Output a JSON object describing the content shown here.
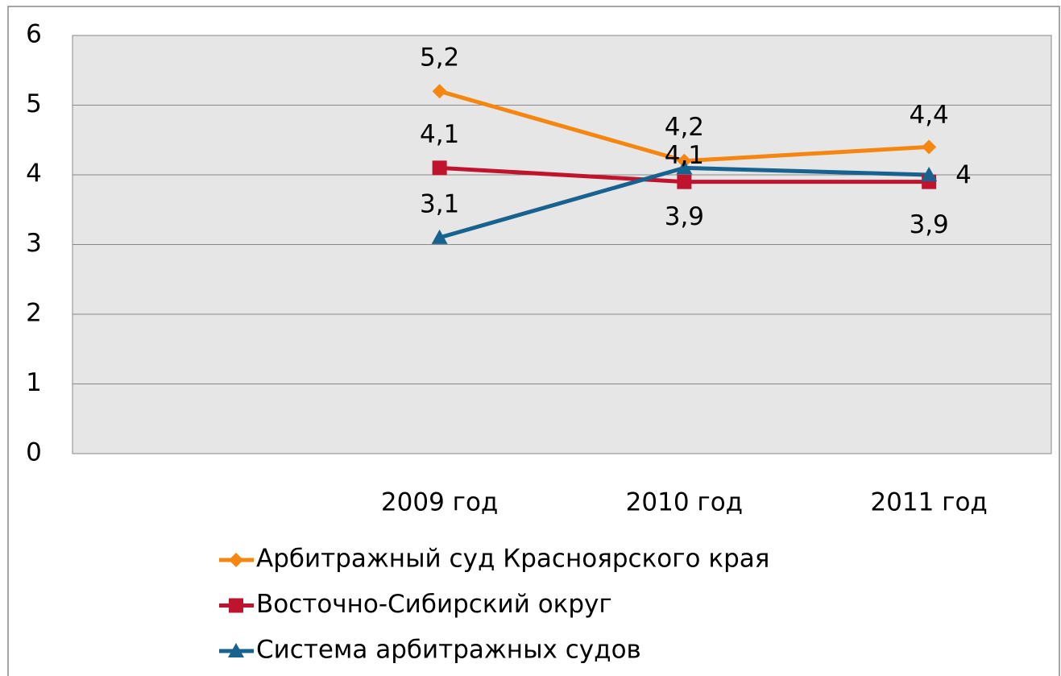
{
  "chart_data": {
    "type": "line",
    "categories": [
      null,
      "2009 год",
      "2010 год",
      "2011 год"
    ],
    "series": [
      {
        "name": "Арбитражный суд Красноярского края",
        "color": "#f5860f",
        "marker": "diamond",
        "values": [
          null,
          5.2,
          4.2,
          4.4
        ],
        "value_labels": [
          null,
          "5,2",
          "4,2",
          "4,4"
        ]
      },
      {
        "name": "Восточно-Сибирский округ",
        "color": "#c0142e",
        "marker": "square",
        "values": [
          null,
          4.1,
          3.9,
          3.9
        ],
        "value_labels": [
          null,
          "4,1",
          "3,9",
          "3,9"
        ]
      },
      {
        "name": "Система арбитражных судов",
        "color": "#17628f",
        "marker": "triangle",
        "values": [
          null,
          3.1,
          4.1,
          4
        ],
        "value_labels": [
          null,
          "3,1",
          "4,1",
          "4"
        ]
      }
    ],
    "ylim": [
      0,
      6
    ],
    "yticks": [
      0,
      1,
      2,
      3,
      4,
      5,
      6
    ],
    "grid": true
  }
}
